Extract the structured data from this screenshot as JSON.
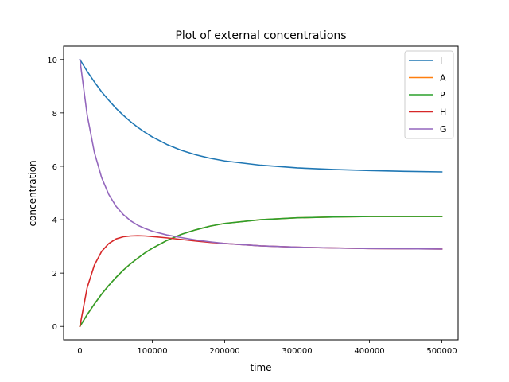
{
  "chart_data": {
    "type": "line",
    "title": "Plot of external concentrations",
    "xlabel": "time",
    "ylabel": "concentration",
    "xlim": [
      -22500,
      522500
    ],
    "ylim": [
      -0.5,
      10.5
    ],
    "xticks": [
      0,
      100000,
      200000,
      300000,
      400000,
      500000
    ],
    "xtick_labels": [
      "0",
      "100000",
      "200000",
      "300000",
      "400000",
      "500000"
    ],
    "yticks": [
      0,
      2,
      4,
      6,
      8,
      10
    ],
    "ytick_labels": [
      "0",
      "2",
      "4",
      "6",
      "8",
      "10"
    ],
    "grid": false,
    "legend_position": "top-right",
    "x": [
      0,
      10000,
      20000,
      30000,
      40000,
      50000,
      60000,
      70000,
      80000,
      90000,
      100000,
      120000,
      140000,
      160000,
      180000,
      200000,
      250000,
      300000,
      350000,
      400000,
      450000,
      500000
    ],
    "series": [
      {
        "name": "I",
        "color": "#1f77b4",
        "values": [
          10.0,
          9.56,
          9.16,
          8.79,
          8.47,
          8.17,
          7.91,
          7.67,
          7.46,
          7.27,
          7.1,
          6.82,
          6.6,
          6.43,
          6.3,
          6.2,
          6.04,
          5.94,
          5.88,
          5.84,
          5.81,
          5.79
        ]
      },
      {
        "name": "A",
        "color": "#ff7f0e",
        "values": [
          0.0,
          0.44,
          0.84,
          1.21,
          1.54,
          1.84,
          2.11,
          2.35,
          2.56,
          2.76,
          2.93,
          3.22,
          3.45,
          3.62,
          3.76,
          3.86,
          4.0,
          4.07,
          4.1,
          4.12,
          4.12,
          4.12
        ]
      },
      {
        "name": "P",
        "color": "#2ca02c",
        "values": [
          0.0,
          0.44,
          0.84,
          1.21,
          1.54,
          1.84,
          2.11,
          2.35,
          2.56,
          2.76,
          2.93,
          3.22,
          3.45,
          3.62,
          3.76,
          3.86,
          4.0,
          4.07,
          4.1,
          4.12,
          4.12,
          4.12
        ]
      },
      {
        "name": "H",
        "color": "#d62728",
        "values": [
          0.0,
          1.45,
          2.3,
          2.81,
          3.11,
          3.28,
          3.36,
          3.39,
          3.4,
          3.39,
          3.37,
          3.32,
          3.26,
          3.2,
          3.15,
          3.11,
          3.02,
          2.97,
          2.94,
          2.92,
          2.91,
          2.9
        ]
      },
      {
        "name": "G",
        "color": "#9467bd",
        "values": [
          10.0,
          7.93,
          6.52,
          5.58,
          4.94,
          4.5,
          4.19,
          3.96,
          3.79,
          3.67,
          3.57,
          3.43,
          3.33,
          3.24,
          3.17,
          3.11,
          3.02,
          2.97,
          2.94,
          2.92,
          2.91,
          2.9
        ]
      }
    ]
  }
}
